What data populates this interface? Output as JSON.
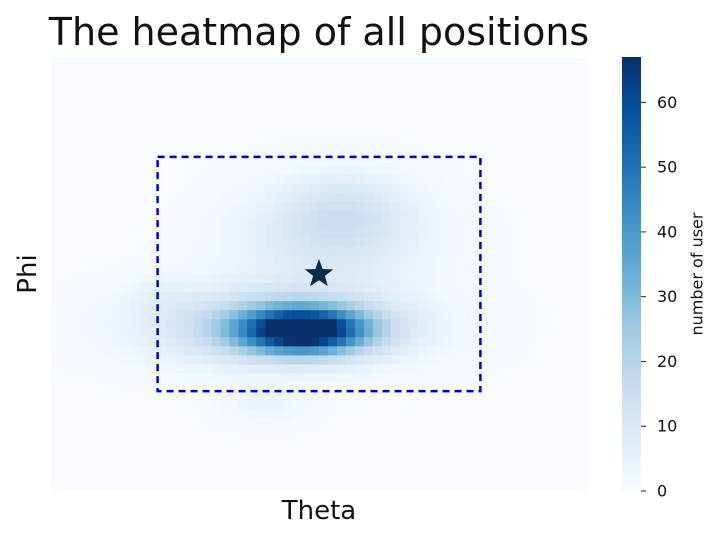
{
  "chart_data": {
    "type": "heatmap",
    "title": "The heatmap of all positions",
    "xlabel": "Theta",
    "ylabel": "Phi",
    "colorbar": {
      "label": "number of user",
      "range": [
        0,
        67
      ],
      "ticks": [
        0,
        10,
        20,
        30,
        40,
        50,
        60
      ],
      "colormap": "Blues"
    },
    "blobs": [
      {
        "cx": 0.47,
        "cy": 0.63,
        "sx": 0.08,
        "sy": 0.035,
        "peak": 67
      },
      {
        "cx": 0.43,
        "cy": 0.62,
        "sx": 0.16,
        "sy": 0.06,
        "peak": 22
      },
      {
        "cx": 0.52,
        "cy": 0.42,
        "sx": 0.12,
        "sy": 0.08,
        "peak": 10
      },
      {
        "cx": 0.55,
        "cy": 0.35,
        "sx": 0.08,
        "sy": 0.06,
        "peak": 8
      },
      {
        "cx": 0.4,
        "cy": 0.8,
        "sx": 0.05,
        "sy": 0.03,
        "peak": 4
      },
      {
        "cx": 0.2,
        "cy": 0.55,
        "sx": 0.04,
        "sy": 0.03,
        "peak": 3
      }
    ],
    "marker": {
      "symbol": "star",
      "theta": 0.5,
      "phi": 0.5,
      "color": "#0b2a4a"
    },
    "region": {
      "theta": [
        0.2,
        0.8
      ],
      "phi": [
        0.23,
        0.77
      ],
      "color": "#0000cc",
      "style": "dashed"
    },
    "grid": false
  }
}
